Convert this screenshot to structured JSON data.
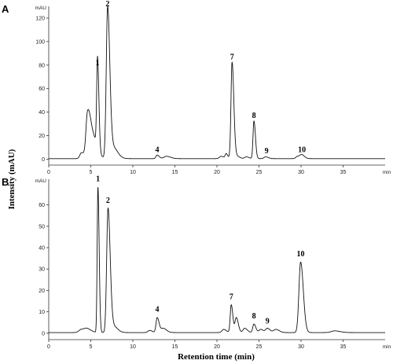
{
  "chart_data": [
    {
      "type": "line",
      "panel_letter": "A",
      "y_unit": "mAU",
      "x_unit": "min",
      "xlim": [
        0,
        40
      ],
      "ylim": [
        -5,
        130
      ],
      "x_ticks": [
        0,
        5,
        10,
        15,
        20,
        25,
        30,
        35
      ],
      "y_ticks": [
        0,
        20,
        40,
        60,
        80,
        100,
        120
      ],
      "baseline": 0.5,
      "peaks": [
        {
          "rt": 3.9,
          "height": 5,
          "width": 0.2
        },
        {
          "rt": 4.6,
          "height": 32,
          "width": 0.18
        },
        {
          "rt": 5.1,
          "height": 22,
          "width": 0.35
        },
        {
          "rt": 5.8,
          "height": 77,
          "width": 0.1
        },
        {
          "rt": 7.0,
          "height": 127,
          "width": 0.16
        },
        {
          "rt": 7.6,
          "height": 10,
          "width": 0.35
        },
        {
          "rt": 12.9,
          "height": 3,
          "width": 0.15
        },
        {
          "rt": 14.0,
          "height": 2,
          "width": 0.3
        },
        {
          "rt": 20.5,
          "height": 2,
          "width": 0.2
        },
        {
          "rt": 21.1,
          "height": 4,
          "width": 0.12
        },
        {
          "rt": 21.8,
          "height": 82,
          "width": 0.13
        },
        {
          "rt": 22.4,
          "height": 2,
          "width": 0.2
        },
        {
          "rt": 23.5,
          "height": 1.5,
          "width": 0.2
        },
        {
          "rt": 24.4,
          "height": 32,
          "width": 0.11
        },
        {
          "rt": 25.8,
          "height": 1.5,
          "width": 0.2
        },
        {
          "rt": 29.6,
          "height": 2,
          "width": 0.2
        },
        {
          "rt": 30.1,
          "height": 3,
          "width": 0.2
        }
      ],
      "peak_labels": [
        {
          "text": "1",
          "rt": 5.8,
          "y": 80
        },
        {
          "text": "2",
          "rt": 7.0,
          "y": 130
        },
        {
          "text": "4",
          "rt": 12.9,
          "y": 6
        },
        {
          "text": "7",
          "rt": 21.8,
          "y": 85
        },
        {
          "text": "8",
          "rt": 24.4,
          "y": 35
        },
        {
          "text": "9",
          "rt": 25.9,
          "y": 5
        },
        {
          "text": "10",
          "rt": 30.1,
          "y": 6
        }
      ]
    },
    {
      "type": "line",
      "panel_letter": "B",
      "y_unit": "mAU",
      "x_unit": "min",
      "xlim": [
        0,
        40
      ],
      "ylim": [
        -3,
        72
      ],
      "x_ticks": [
        0,
        5,
        10,
        15,
        20,
        25,
        30,
        35
      ],
      "y_ticks": [
        0,
        10,
        20,
        30,
        40,
        50,
        60
      ],
      "baseline": 0.3,
      "peaks": [
        {
          "rt": 3.9,
          "height": 1.5,
          "width": 0.3
        },
        {
          "rt": 4.6,
          "height": 1.5,
          "width": 0.3
        },
        {
          "rt": 5.85,
          "height": 68,
          "width": 0.09
        },
        {
          "rt": 7.05,
          "height": 58,
          "width": 0.16
        },
        {
          "rt": 7.7,
          "height": 3,
          "width": 0.3
        },
        {
          "rt": 12.0,
          "height": 1,
          "width": 0.2
        },
        {
          "rt": 12.9,
          "height": 7,
          "width": 0.14
        },
        {
          "rt": 13.6,
          "height": 2,
          "width": 0.25
        },
        {
          "rt": 20.8,
          "height": 1.5,
          "width": 0.2
        },
        {
          "rt": 21.7,
          "height": 13,
          "width": 0.12
        },
        {
          "rt": 22.3,
          "height": 7,
          "width": 0.15
        },
        {
          "rt": 23.3,
          "height": 2,
          "width": 0.2
        },
        {
          "rt": 24.4,
          "height": 4,
          "width": 0.14
        },
        {
          "rt": 25.2,
          "height": 1.5,
          "width": 0.2
        },
        {
          "rt": 26.0,
          "height": 2,
          "width": 0.2
        },
        {
          "rt": 27.0,
          "height": 1.5,
          "width": 0.25
        },
        {
          "rt": 29.95,
          "height": 33,
          "width": 0.2
        },
        {
          "rt": 34.0,
          "height": 0.8,
          "width": 0.4
        }
      ],
      "peak_labels": [
        {
          "text": "1",
          "rt": 5.85,
          "y": 71
        },
        {
          "text": "2",
          "rt": 7.05,
          "y": 61
        },
        {
          "text": "4",
          "rt": 12.9,
          "y": 10
        },
        {
          "text": "7",
          "rt": 21.7,
          "y": 16
        },
        {
          "text": "8",
          "rt": 24.4,
          "y": 7
        },
        {
          "text": "9",
          "rt": 26.0,
          "y": 4.5
        },
        {
          "text": "10",
          "rt": 29.95,
          "y": 36
        }
      ]
    }
  ],
  "xlabel": "Retention time (min)",
  "ylabel": "Intensity (mAU)"
}
